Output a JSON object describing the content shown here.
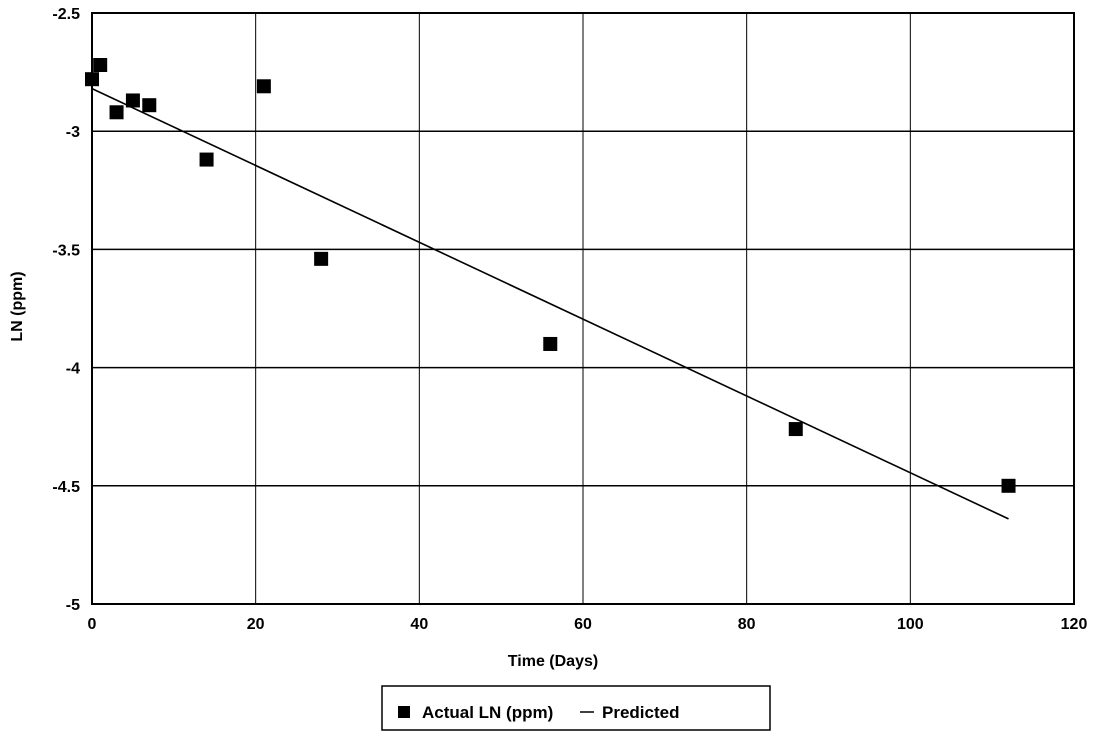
{
  "chart_data": {
    "type": "scatter",
    "title": "",
    "xlabel": "Time (Days)",
    "ylabel": "LN (ppm)",
    "xlim": [
      0,
      120
    ],
    "ylim": [
      -5,
      -2.5
    ],
    "xticks": [
      0,
      20,
      40,
      60,
      80,
      100,
      120
    ],
    "yticks": [
      -2.5,
      -3,
      -3.5,
      -4,
      -4.5,
      -5
    ],
    "xtick_labels": [
      "0",
      "20",
      "40",
      "60",
      "80",
      "100",
      "120"
    ],
    "ytick_labels": [
      "-2.5",
      "-3",
      "-3.5",
      "-4",
      "-4.5",
      "-5"
    ],
    "grid": true,
    "legend_position": "bottom-center",
    "series": [
      {
        "name": "Actual LN (ppm)",
        "kind": "scatter",
        "marker": "square",
        "color": "#000000",
        "points": [
          {
            "x": 0,
            "y": -2.78
          },
          {
            "x": 1,
            "y": -2.72
          },
          {
            "x": 3,
            "y": -2.92
          },
          {
            "x": 5,
            "y": -2.87
          },
          {
            "x": 7,
            "y": -2.89
          },
          {
            "x": 14,
            "y": -3.12
          },
          {
            "x": 21,
            "y": -2.81
          },
          {
            "x": 28,
            "y": -3.54
          },
          {
            "x": 56,
            "y": -3.9
          },
          {
            "x": 86,
            "y": -4.26
          },
          {
            "x": 112,
            "y": -4.5
          }
        ]
      },
      {
        "name": "Predicted",
        "kind": "line",
        "color": "#000000",
        "points": [
          {
            "x": 0,
            "y": -2.82
          },
          {
            "x": 112,
            "y": -4.64
          }
        ]
      }
    ]
  }
}
